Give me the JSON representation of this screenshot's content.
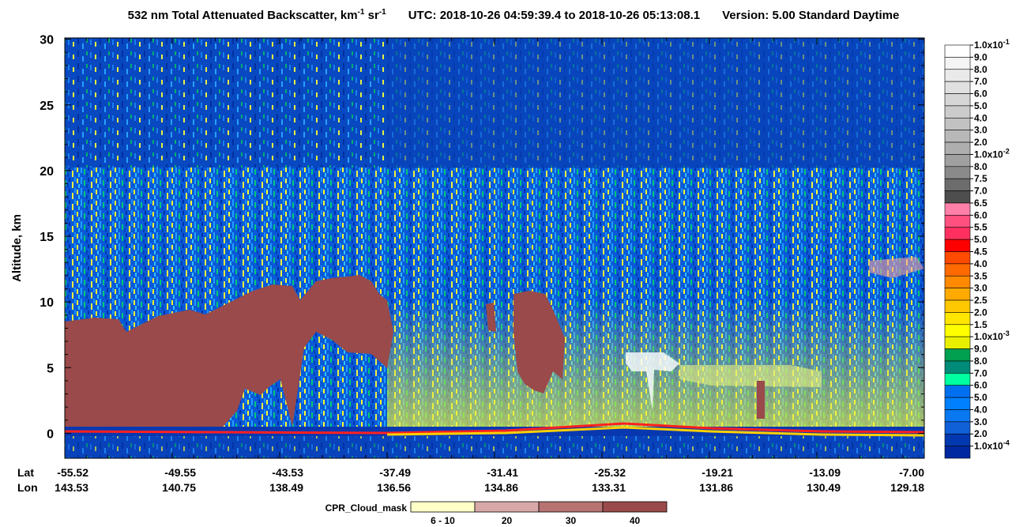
{
  "chart_data": {
    "type": "heatmap",
    "title_parts": [
      "532 nm Total Attenuated Backscatter, km",
      "-1",
      " sr",
      "-1",
      "UTC:  2018-10-26 04:59:39.4  to  2018-10-26 05:13:08.1",
      "Version: 5.00  Standard  Daytime"
    ],
    "y_label": "Altitude, km",
    "ylim": [
      -1.9,
      30.1
    ],
    "yticks": [
      0,
      5,
      10,
      15,
      20,
      25,
      30
    ],
    "x_row_labels": [
      "Lat",
      "Lon"
    ],
    "lat": [
      "-55.52",
      "-49.55",
      "-43.53",
      "-37.49",
      "-31.41",
      "-25.32",
      "-19.21",
      "-13.09",
      "-7.00"
    ],
    "lon": [
      "143.53",
      "140.75",
      "138.49",
      "136.56",
      "134.86",
      "133.31",
      "131.86",
      "130.49",
      "129.18"
    ],
    "colorbar": {
      "labels": [
        {
          "base": "1.0x10",
          "exp": "-1"
        },
        {
          "base": "9.0"
        },
        {
          "base": "8.0"
        },
        {
          "base": "7.0"
        },
        {
          "base": "6.0"
        },
        {
          "base": "5.0"
        },
        {
          "base": "4.0"
        },
        {
          "base": "3.0"
        },
        {
          "base": "2.0"
        },
        {
          "base": "1.0x10",
          "exp": "-2"
        },
        {
          "base": "8.0"
        },
        {
          "base": "7.5"
        },
        {
          "base": "7.0"
        },
        {
          "base": "6.5"
        },
        {
          "base": "6.0"
        },
        {
          "base": "5.5"
        },
        {
          "base": "5.0"
        },
        {
          "base": "4.5"
        },
        {
          "base": "4.0"
        },
        {
          "base": "3.5"
        },
        {
          "base": "3.0"
        },
        {
          "base": "2.5"
        },
        {
          "base": "2.0"
        },
        {
          "base": "1.5"
        },
        {
          "base": "1.0x10",
          "exp": "-3"
        },
        {
          "base": "9.0"
        },
        {
          "base": "8.0"
        },
        {
          "base": "7.0"
        },
        {
          "base": "6.0"
        },
        {
          "base": "5.0"
        },
        {
          "base": "4.0"
        },
        {
          "base": "3.0"
        },
        {
          "base": "2.0"
        },
        {
          "base": "1.0x10",
          "exp": "-4"
        }
      ],
      "colors": [
        "#ffffff",
        "#f4f4f4",
        "#eaeaea",
        "#e0e0e0",
        "#d6d6d6",
        "#cccccc",
        "#c2c2c2",
        "#b8b8b8",
        "#aeaeae",
        "#a0a0a0",
        "#8a8a8a",
        "#6c6c6c",
        "#4e4e4e",
        "#ff80a8",
        "#ff5080",
        "#ff3060",
        "#ff0000",
        "#ff4a00",
        "#ff6a00",
        "#ff8a00",
        "#ffaa00",
        "#ffc800",
        "#ffe600",
        "#ffff00",
        "#e8f000",
        "#00a050",
        "#008a78",
        "#00ffa0",
        "#0070f0",
        "#0080ff",
        "#0a78f0",
        "#1060d8",
        "#0038b0",
        "#0028a0"
      ]
    },
    "cloud_mask": {
      "title": "CPR_Cloud_mask",
      "labels": [
        "6 - 10",
        "20",
        "30",
        "40"
      ],
      "colors": [
        "#ffffc8",
        "#d8a8a8",
        "#b87272",
        "#9a4a4a"
      ]
    }
  }
}
